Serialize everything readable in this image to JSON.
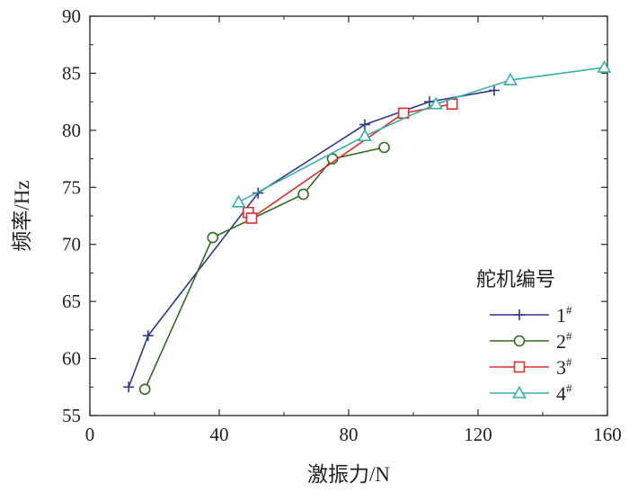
{
  "chart_data": {
    "type": "line",
    "title": "",
    "xlabel": "激振力/N",
    "ylabel": "频率/Hz",
    "xlim": [
      0,
      160
    ],
    "ylim": [
      55,
      90
    ],
    "xticks": [
      0,
      40,
      80,
      120,
      160
    ],
    "xticks_minor": [
      20,
      60,
      100,
      140
    ],
    "yticks": [
      55,
      60,
      65,
      70,
      75,
      80,
      85,
      90
    ],
    "grid": false,
    "legend": {
      "title": "舵机编号",
      "position": "bottom-right"
    },
    "series": [
      {
        "name": "1",
        "sup": "#",
        "marker": "plus",
        "color": "#2e3a8c",
        "x": [
          12,
          18,
          52,
          85,
          105,
          125
        ],
        "y": [
          57.5,
          62,
          74.5,
          80.5,
          82.5,
          83.5
        ]
      },
      {
        "name": "2",
        "sup": "#",
        "marker": "circle",
        "color": "#2e6b1f",
        "x": [
          17,
          38,
          66,
          75,
          91
        ],
        "y": [
          57.3,
          70.6,
          74.4,
          77.5,
          78.5
        ]
      },
      {
        "name": "3",
        "sup": "#",
        "marker": "square",
        "color": "#e02b2b",
        "x": [
          49,
          50,
          97,
          112
        ],
        "y": [
          72.8,
          72.3,
          81.5,
          82.3
        ]
      },
      {
        "name": "4",
        "sup": "#",
        "marker": "triangle",
        "color": "#36b0a8",
        "x": [
          46,
          85,
          107,
          130,
          159
        ],
        "y": [
          73.7,
          79.5,
          82.3,
          84.4,
          85.5
        ]
      }
    ]
  }
}
